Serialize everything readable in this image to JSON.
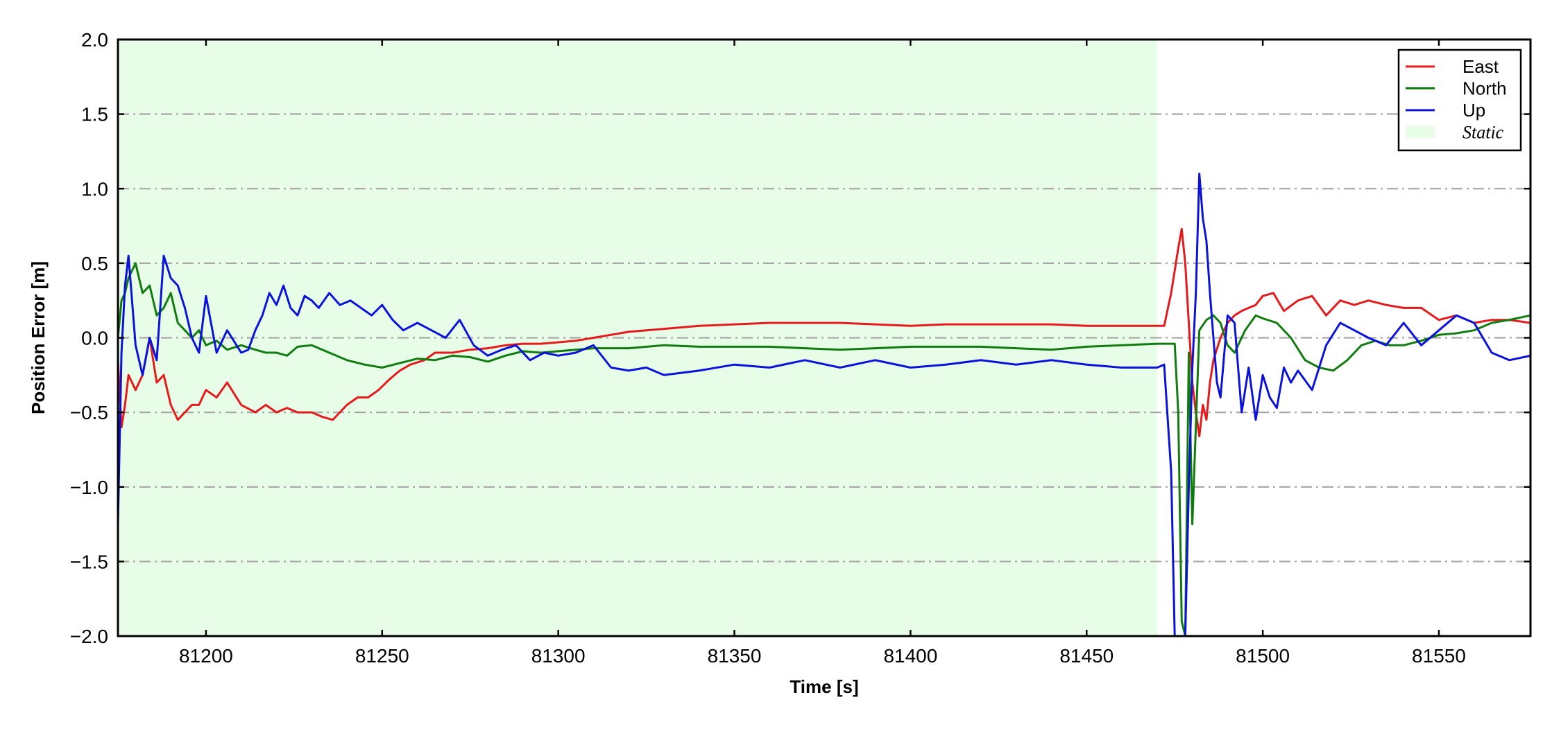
{
  "chart_data": {
    "type": "line",
    "xlabel": "Time [s]",
    "ylabel": "Position Error [m]",
    "xlim": [
      81175,
      81576
    ],
    "ylim": [
      -2.0,
      2.0
    ],
    "x_ticks": [
      "81200",
      "81250",
      "81300",
      "81350",
      "81400",
      "81450",
      "81500",
      "81550"
    ],
    "y_ticks": [
      "2.0",
      "1.5",
      "1.0",
      "0.5",
      "0.0",
      "−0.5",
      "−1.0",
      "−1.5",
      "−2.0"
    ],
    "grid": "horizontal dash-dot",
    "legend_position": "top-right",
    "static_region": {
      "label": "Static",
      "x_start": 81175,
      "x_end": 81470,
      "color": "#e8fde8"
    },
    "series": [
      {
        "name": "East",
        "color": "#e41a1c",
        "x": [
          81175,
          81176,
          81177,
          81178,
          81180,
          81182,
          81184,
          81186,
          81188,
          81190,
          81192,
          81194,
          81196,
          81198,
          81200,
          81203,
          81206,
          81210,
          81214,
          81217,
          81220,
          81223,
          81226,
          81230,
          81233,
          81236,
          81240,
          81243,
          81246,
          81249,
          81252,
          81255,
          81258,
          81262,
          81265,
          81270,
          81275,
          81280,
          81285,
          81290,
          81295,
          81300,
          81305,
          81310,
          81315,
          81320,
          81325,
          81330,
          81340,
          81350,
          81360,
          81370,
          81380,
          81390,
          81400,
          81410,
          81420,
          81430,
          81440,
          81450,
          81460,
          81470,
          81472,
          81474,
          81476,
          81477,
          81478,
          81479,
          81480,
          81481,
          81482,
          81483,
          81484,
          81485,
          81486,
          81488,
          81490,
          81492,
          81494,
          81496,
          81498,
          81500,
          81503,
          81506,
          81510,
          81514,
          81518,
          81522,
          81526,
          81530,
          81535,
          81540,
          81545,
          81550,
          81555,
          81560,
          81565,
          81570,
          81576
        ],
        "y": [
          -0.15,
          -0.6,
          -0.45,
          -0.25,
          -0.35,
          -0.25,
          0.0,
          -0.3,
          -0.25,
          -0.45,
          -0.55,
          -0.5,
          -0.45,
          -0.45,
          -0.35,
          -0.4,
          -0.3,
          -0.45,
          -0.5,
          -0.45,
          -0.5,
          -0.47,
          -0.5,
          -0.5,
          -0.53,
          -0.55,
          -0.45,
          -0.4,
          -0.4,
          -0.35,
          -0.28,
          -0.22,
          -0.18,
          -0.15,
          -0.1,
          -0.1,
          -0.08,
          -0.07,
          -0.05,
          -0.04,
          -0.04,
          -0.03,
          -0.02,
          0.0,
          0.02,
          0.04,
          0.05,
          0.06,
          0.08,
          0.09,
          0.1,
          0.1,
          0.1,
          0.09,
          0.08,
          0.09,
          0.09,
          0.09,
          0.09,
          0.08,
          0.08,
          0.08,
          0.08,
          0.3,
          0.6,
          0.73,
          0.5,
          0.1,
          -0.3,
          -0.5,
          -0.66,
          -0.45,
          -0.55,
          -0.3,
          -0.15,
          0.0,
          0.1,
          0.15,
          0.18,
          0.2,
          0.22,
          0.28,
          0.3,
          0.18,
          0.25,
          0.28,
          0.15,
          0.25,
          0.22,
          0.25,
          0.22,
          0.2,
          0.2,
          0.12,
          0.15,
          0.1,
          0.12,
          0.12,
          0.1
        ]
      },
      {
        "name": "North",
        "color": "#107c10",
        "x": [
          81175,
          81176,
          81177,
          81178,
          81180,
          81182,
          81184,
          81186,
          81188,
          81190,
          81192,
          81194,
          81196,
          81198,
          81200,
          81203,
          81206,
          81210,
          81214,
          81217,
          81220,
          81223,
          81226,
          81230,
          81235,
          81240,
          81245,
          81250,
          81255,
          81260,
          81265,
          81270,
          81275,
          81280,
          81285,
          81290,
          81295,
          81300,
          81305,
          81310,
          81320,
          81330,
          81340,
          81350,
          81360,
          81370,
          81380,
          81390,
          81400,
          81410,
          81420,
          81430,
          81440,
          81450,
          81460,
          81470,
          81472,
          81474,
          81475,
          81476,
          81477,
          81478,
          81479,
          81480,
          81482,
          81484,
          81486,
          81488,
          81490,
          81492,
          81495,
          81498,
          81500,
          81504,
          81508,
          81512,
          81516,
          81520,
          81524,
          81528,
          81532,
          81536,
          81540,
          81545,
          81550,
          81555,
          81560,
          81565,
          81570,
          81576
        ],
        "y": [
          0.0,
          0.25,
          0.3,
          0.4,
          0.5,
          0.3,
          0.35,
          0.15,
          0.2,
          0.3,
          0.1,
          0.05,
          0.0,
          0.05,
          -0.05,
          -0.02,
          -0.08,
          -0.05,
          -0.08,
          -0.1,
          -0.1,
          -0.12,
          -0.06,
          -0.05,
          -0.1,
          -0.15,
          -0.18,
          -0.2,
          -0.17,
          -0.14,
          -0.15,
          -0.12,
          -0.13,
          -0.16,
          -0.12,
          -0.09,
          -0.1,
          -0.09,
          -0.08,
          -0.07,
          -0.07,
          -0.05,
          -0.06,
          -0.06,
          -0.06,
          -0.07,
          -0.08,
          -0.07,
          -0.06,
          -0.06,
          -0.06,
          -0.07,
          -0.08,
          -0.06,
          -0.05,
          -0.04,
          -0.04,
          -0.04,
          -0.04,
          -0.5,
          -1.9,
          -2.0,
          -0.1,
          -1.25,
          0.05,
          0.12,
          0.15,
          0.1,
          -0.05,
          -0.1,
          0.05,
          0.15,
          0.13,
          0.1,
          0.0,
          -0.15,
          -0.2,
          -0.22,
          -0.15,
          -0.05,
          -0.02,
          -0.05,
          -0.05,
          -0.02,
          0.02,
          0.03,
          0.05,
          0.1,
          0.12,
          0.15
        ]
      },
      {
        "name": "Up",
        "color": "#0a12dc",
        "x": [
          81175,
          81176,
          81177,
          81178,
          81180,
          81182,
          81184,
          81186,
          81188,
          81190,
          81192,
          81194,
          81196,
          81198,
          81200,
          81203,
          81206,
          81210,
          81212,
          81214,
          81216,
          81218,
          81220,
          81222,
          81224,
          81226,
          81228,
          81230,
          81232,
          81235,
          81238,
          81241,
          81244,
          81247,
          81250,
          81253,
          81256,
          81260,
          81264,
          81268,
          81272,
          81276,
          81280,
          81284,
          81288,
          81292,
          81296,
          81300,
          81305,
          81310,
          81315,
          81320,
          81325,
          81330,
          81340,
          81350,
          81360,
          81370,
          81380,
          81390,
          81400,
          81410,
          81420,
          81430,
          81440,
          81450,
          81460,
          81470,
          81472,
          81474,
          81475,
          81476,
          81477,
          81478,
          81479,
          81480,
          81481,
          81482,
          81483,
          81484,
          81485,
          81486,
          81487,
          81488,
          81490,
          81492,
          81494,
          81496,
          81498,
          81500,
          81502,
          81504,
          81506,
          81508,
          81510,
          81514,
          81518,
          81522,
          81526,
          81530,
          81535,
          81540,
          81545,
          81550,
          81555,
          81560,
          81565,
          81570,
          81576
        ],
        "y": [
          -1.25,
          -0.1,
          0.35,
          0.55,
          -0.05,
          -0.25,
          0.0,
          -0.15,
          0.55,
          0.4,
          0.35,
          0.2,
          0.0,
          -0.1,
          0.28,
          -0.1,
          0.05,
          -0.1,
          -0.08,
          0.05,
          0.15,
          0.3,
          0.22,
          0.35,
          0.2,
          0.15,
          0.28,
          0.25,
          0.2,
          0.3,
          0.22,
          0.25,
          0.2,
          0.15,
          0.22,
          0.12,
          0.05,
          0.1,
          0.05,
          0.0,
          0.12,
          -0.05,
          -0.12,
          -0.08,
          -0.05,
          -0.15,
          -0.1,
          -0.12,
          -0.1,
          -0.05,
          -0.2,
          -0.22,
          -0.2,
          -0.25,
          -0.22,
          -0.18,
          -0.2,
          -0.15,
          -0.2,
          -0.15,
          -0.2,
          -0.18,
          -0.15,
          -0.18,
          -0.15,
          -0.18,
          -0.2,
          -0.2,
          -0.18,
          -0.9,
          -2.0,
          -2.0,
          -2.0,
          -2.0,
          -1.0,
          -0.2,
          0.3,
          1.1,
          0.8,
          0.65,
          0.3,
          0.0,
          -0.3,
          -0.4,
          0.15,
          0.1,
          -0.5,
          -0.2,
          -0.55,
          -0.25,
          -0.4,
          -0.47,
          -0.2,
          -0.3,
          -0.22,
          -0.35,
          -0.05,
          0.1,
          0.05,
          0.0,
          -0.05,
          0.1,
          -0.05,
          0.05,
          0.15,
          0.1,
          -0.1,
          -0.15,
          -0.12
        ]
      }
    ]
  }
}
